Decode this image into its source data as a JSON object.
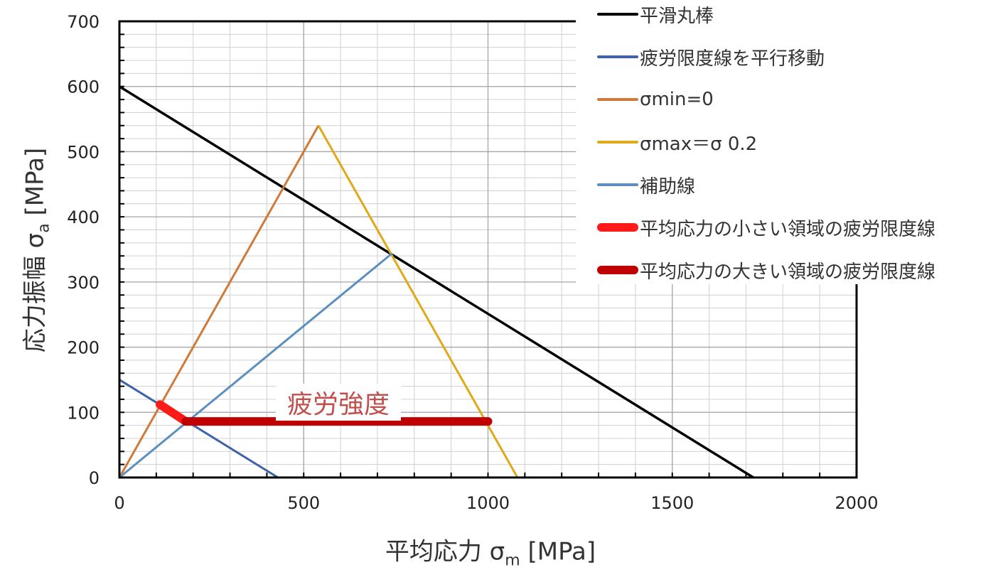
{
  "chart_data": {
    "type": "line",
    "xlabel_main": "平均応力",
    "xlabel_symbol": "σ",
    "xlabel_sub": "m",
    "xlabel_unit": "[MPa]",
    "ylabel_main": "応力振幅",
    "ylabel_symbol": "σ",
    "ylabel_sub": "a",
    "ylabel_unit": "[MPa]",
    "xlim": [
      0,
      2000
    ],
    "ylim": [
      0,
      700
    ],
    "x_ticks": [
      0,
      500,
      1000,
      1500,
      2000
    ],
    "y_ticks": [
      0,
      100,
      200,
      300,
      400,
      500,
      600,
      700
    ],
    "x_tick_labels": [
      "0",
      "500",
      "1000",
      "1500",
      "2000"
    ],
    "y_tick_labels": [
      "0",
      "100",
      "200",
      "300",
      "400",
      "500",
      "600",
      "700"
    ],
    "grid": true,
    "legend_position": "top-right",
    "annotation": "疲労強度",
    "series": [
      {
        "name": "平滑丸棒",
        "color": "#000000",
        "points": [
          [
            0,
            600
          ],
          [
            1720,
            0
          ]
        ]
      },
      {
        "name": "疲労限度線を平行移動",
        "color": "#3f63a8",
        "points": [
          [
            0,
            150
          ],
          [
            430,
            0
          ]
        ]
      },
      {
        "name": "σmin=0",
        "color": "#d07a3a",
        "points": [
          [
            0,
            0
          ],
          [
            540,
            540
          ]
        ]
      },
      {
        "name": "σmax＝σ 0.2",
        "color": "#e0a918",
        "points": [
          [
            540,
            540
          ],
          [
            1080,
            0
          ]
        ]
      },
      {
        "name": "補助線",
        "color": "#5b8fc0",
        "points": [
          [
            0,
            0
          ],
          [
            740,
            344
          ]
        ]
      },
      {
        "name": "平均応力の小さい領域の疲労限度線",
        "color": "#ff1a1a",
        "points": [
          [
            110,
            112
          ],
          [
            180,
            86
          ]
        ]
      },
      {
        "name": "平均応力の大きい領域の疲労限度線",
        "color": "#c00000",
        "points": [
          [
            180,
            86
          ],
          [
            1000,
            86
          ]
        ]
      }
    ]
  }
}
